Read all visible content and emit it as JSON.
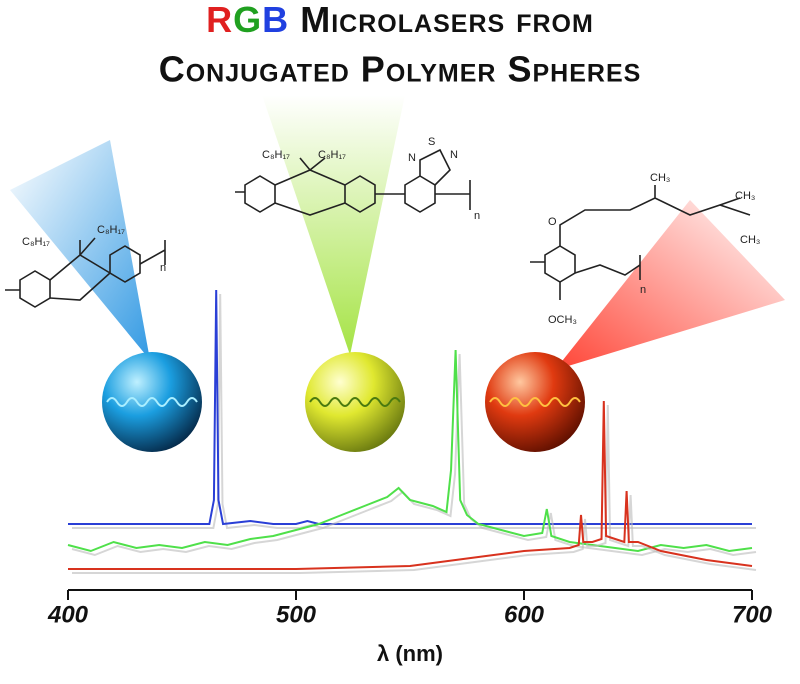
{
  "chart_data": {
    "type": "line",
    "title": "RGB Microlasers from",
    "subtitle": "Conjugated Polymer Spheres",
    "xlabel": "λ (nm)",
    "xlim": [
      400,
      700
    ],
    "xticks": [
      400,
      500,
      600,
      700
    ],
    "ylim": [
      0,
      100
    ],
    "series": [
      {
        "color": "#2a3fd6",
        "x": [
          400,
          450,
          462,
          464,
          465,
          466,
          468,
          480,
          490,
          500,
          505,
          510,
          550,
          600,
          650,
          700
        ],
        "values": [
          22,
          22,
          22,
          30,
          100,
          30,
          22,
          23,
          22,
          22,
          23,
          22,
          22,
          22,
          22,
          22
        ]
      },
      {
        "color": "#4fe04a",
        "x": [
          400,
          410,
          420,
          430,
          440,
          450,
          460,
          470,
          480,
          490,
          500,
          510,
          520,
          530,
          540,
          545,
          550,
          560,
          566,
          568,
          570,
          572,
          575,
          580,
          590,
          600,
          608,
          610,
          612,
          620,
          630,
          640,
          650,
          660,
          670,
          680,
          690,
          700
        ],
        "values": [
          15,
          13,
          16,
          14,
          15,
          14,
          16,
          15,
          17,
          18,
          20,
          22,
          25,
          28,
          31,
          34,
          30,
          28,
          26,
          40,
          80,
          30,
          25,
          22,
          20,
          18,
          19,
          27,
          18,
          16,
          15,
          14,
          13,
          15,
          14,
          15,
          13,
          14
        ]
      },
      {
        "color": "#d8321e",
        "x": [
          400,
          450,
          500,
          550,
          580,
          600,
          620,
          624,
          625,
          626,
          630,
          634,
          635,
          636,
          640,
          644,
          645,
          646,
          650,
          660,
          680,
          700
        ],
        "values": [
          7,
          7,
          7,
          8,
          11,
          13,
          14,
          15,
          25,
          16,
          16,
          17,
          63,
          18,
          17,
          16,
          33,
          16,
          16,
          13,
          10,
          8
        ]
      }
    ]
  },
  "structures": {
    "fluorene": {
      "side1": "C₈H₁₇",
      "side2": "C₈H₁₇",
      "n": "n"
    },
    "copolymer": {
      "side1": "C₈H₁₇",
      "side2": "C₈H₁₇",
      "s": "S",
      "n1": "N",
      "n2": "N",
      "n": "n"
    },
    "ppv": {
      "methyl1": "CH₃",
      "methyl2": "CH₃",
      "methyl3": "CH₃",
      "methoxy": "OCH₃",
      "o": "O",
      "n": "n"
    }
  }
}
